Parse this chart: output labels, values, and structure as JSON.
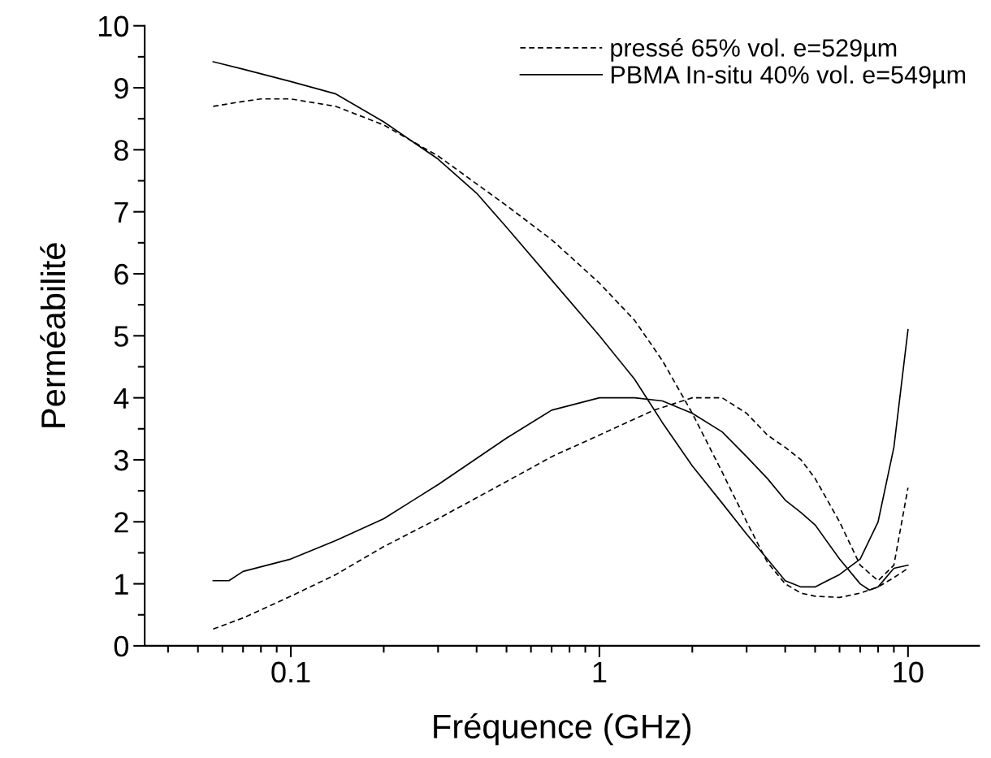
{
  "chart_data": {
    "type": "line",
    "xlabel": "Fréquence (GHz)",
    "ylabel": "Perméabilité",
    "log": "x",
    "xlim": [
      0.0336,
      17
    ],
    "xticks": [
      0.1,
      1,
      10
    ],
    "ylim": [
      0,
      10
    ],
    "yticks": [
      0,
      1,
      2,
      3,
      4,
      5,
      6,
      7,
      8,
      9,
      10
    ],
    "grid": false,
    "legend": "top right",
    "marker": "none",
    "series": [
      {
        "name": "pressé 65% vol. e=529µm",
        "color": "#000000",
        "line_style": "dashed",
        "x": [
          0.056,
          0.07,
          0.08,
          0.1,
          0.14,
          0.2,
          0.3,
          0.4,
          0.5,
          0.7,
          1,
          1.3,
          1.6,
          2,
          2.5,
          3,
          3.5,
          4,
          4.5,
          5,
          6,
          7,
          8,
          9,
          10
        ],
        "values": [
          8.7,
          8.78,
          8.82,
          8.82,
          8.7,
          8.4,
          7.9,
          7.45,
          7.1,
          6.55,
          5.85,
          5.25,
          4.6,
          3.75,
          2.8,
          2.0,
          1.35,
          1.0,
          0.85,
          0.8,
          0.78,
          0.85,
          0.95,
          1.1,
          1.25
        ]
      },
      {
        "color": "#000000",
        "line_style": "dashed",
        "x": [
          0.056,
          0.07,
          0.08,
          0.1,
          0.14,
          0.2,
          0.3,
          0.5,
          0.7,
          1,
          1.5,
          2,
          2.5,
          3,
          3.5,
          4,
          4.5,
          5,
          6,
          7,
          8,
          9,
          10
        ],
        "values": [
          0.27,
          0.45,
          0.58,
          0.8,
          1.15,
          1.6,
          2.05,
          2.65,
          3.05,
          3.4,
          3.8,
          4.0,
          4.0,
          3.75,
          3.4,
          3.2,
          3.0,
          2.7,
          2.0,
          1.3,
          1.05,
          1.3,
          2.55
        ]
      },
      {
        "name": "PBMA In-situ 40% vol. e=549µm",
        "color": "#000000",
        "line_style": "solid",
        "x": [
          0.056,
          0.07,
          0.1,
          0.14,
          0.2,
          0.3,
          0.4,
          0.5,
          0.7,
          1,
          1.3,
          1.6,
          2,
          2.5,
          3,
          3.5,
          4,
          4.5,
          5,
          6,
          7,
          8,
          9,
          10
        ],
        "values": [
          9.42,
          9.3,
          9.1,
          8.9,
          8.45,
          7.85,
          7.3,
          6.75,
          5.9,
          5.0,
          4.3,
          3.6,
          2.9,
          2.3,
          1.8,
          1.4,
          1.05,
          0.95,
          0.95,
          1.15,
          1.4,
          2.0,
          3.2,
          5.1
        ]
      },
      {
        "color": "#000000",
        "line_style": "solid",
        "x": [
          0.056,
          0.063,
          0.07,
          0.1,
          0.14,
          0.2,
          0.3,
          0.5,
          0.7,
          1,
          1.3,
          1.6,
          2,
          2.5,
          3,
          3.5,
          4,
          4.5,
          5,
          6,
          7,
          7.5,
          8,
          9,
          10
        ],
        "values": [
          1.05,
          1.05,
          1.2,
          1.4,
          1.7,
          2.05,
          2.6,
          3.35,
          3.8,
          4.0,
          4.0,
          3.95,
          3.75,
          3.45,
          3.05,
          2.7,
          2.35,
          2.15,
          1.95,
          1.4,
          1.0,
          0.9,
          0.95,
          1.25,
          1.3
        ]
      }
    ]
  }
}
